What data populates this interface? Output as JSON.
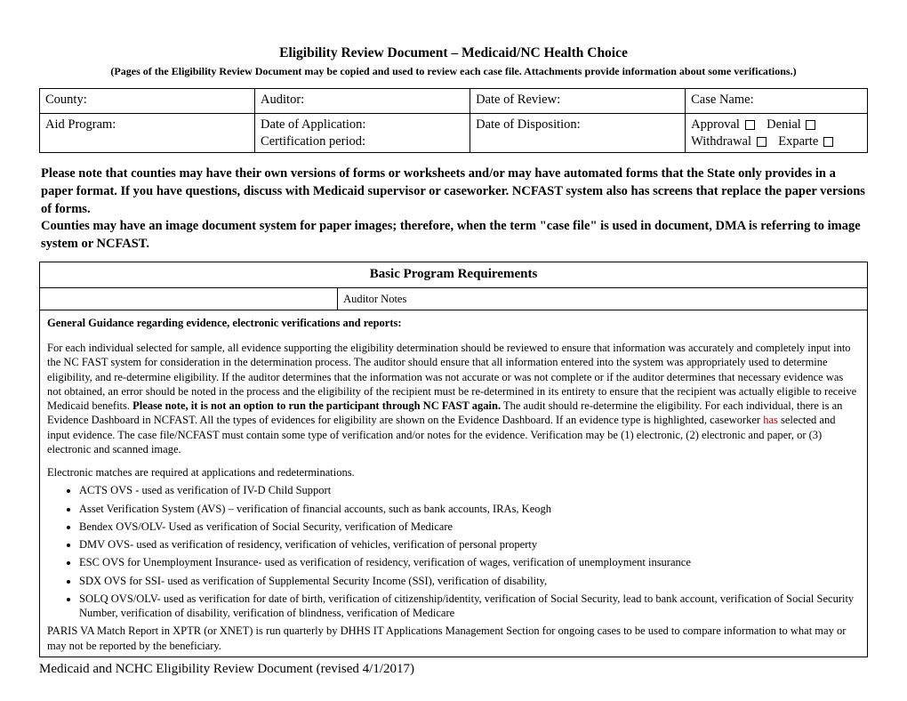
{
  "doc": {
    "title": "Eligibility Review Document – Medicaid/NC Health Choice",
    "subtitle": "(Pages of the Eligibility Review Document may be copied and used to review each case file.  Attachments provide information about some verifications.)",
    "footer": "Medicaid and NCHC Eligibility Review Document (revised 4/1/2017)"
  },
  "header_table": {
    "row1": {
      "county": "County:",
      "auditor": "Auditor:",
      "date_review": "Date of Review:",
      "case_name": "Case Name:"
    },
    "row2": {
      "aid_program": "Aid Program:",
      "date_app_line1": "Date of Application:",
      "date_app_line2": "Certification period:",
      "date_disposition": "Date of Disposition:",
      "approval": "Approval",
      "denial": "Denial",
      "withdrawal": "Withdrawal",
      "exparte": "Exparte"
    }
  },
  "note": "Please note that counties may have their own versions of forms or worksheets and/or may have automated forms that the State only provides in a paper format.  If you have questions, discuss with Medicaid supervisor or caseworker.  NCFAST system also has screens that replace the paper versions of forms.\nCounties may have an image document system for paper images; therefore, when the term \"case file\" is used in document, DMA is referring to image system or NCFAST.",
  "section": {
    "title": "Basic Program Requirements",
    "auditor_notes_label": "Auditor Notes",
    "guidance_header": "General Guidance regarding evidence, electronic verifications and reports:",
    "para1_a": "For each individual selected for sample, all evidence supporting the eligibility determination should be reviewed to ensure that information was accurately and completely input into the NC FAST system for consideration in the determination process.  The auditor should ensure that all information entered into the system was appropriately used to determine eligibility, and re-determine eligibility.  If the auditor determines that the information was not accurate or was not complete or if the auditor determines that necessary evidence was not obtained, an error should be noted in the process and the eligibility of the recipient must be re-determined in its entirety to ensure that the recipient was actually eligible to receive Medicaid benefits.  ",
    "para1_bold": "Please note, it is not an option to run the participant through NC FAST again.",
    "para1_b": " The audit should re-determine the eligibility.  For each individual, there is an Evidence Dashboard in NCFAST.  All the types of evidences for eligibility are shown on the Evidence Dashboard.  If an evidence type is highlighted, caseworker ",
    "para1_has": "has",
    "para1_c": " selected and input evidence.  The case file/NCFAST must contain some type of verification and/or notes for the evidence. Verification may be (1) electronic, (2) electronic and paper, or (3) electronic and scanned image.",
    "para2": "Electronic matches are required at applications and redeterminations.",
    "bullets": [
      "ACTS OVS - used as verification of IV-D Child Support",
      "Asset Verification System (AVS) – verification of financial accounts, such as bank accounts, IRAs, Keogh",
      "Bendex OVS/OLV- Used as verification of Social Security, verification of Medicare",
      "DMV OVS- used as verification of residency, verification of vehicles, verification of personal property",
      "ESC OVS for Unemployment Insurance- used as verification of residency, verification of wages, verification of unemployment insurance",
      "SDX OVS for SSI- used as verification of Supplemental Security Income (SSI), verification of disability,",
      "SOLQ OVS/OLV- used as verification for date of birth, verification of citizenship/identity, verification of Social Security, lead to bank account, verification of Social Security Number, verification of disability, verification of blindness, verification of Medicare"
    ],
    "para3": "PARIS VA Match Report in XPTR (or XNET) is run quarterly by DHHS IT Applications Management Section for ongoing cases to be used to compare information to what may or may not be reported by the beneficiary."
  }
}
